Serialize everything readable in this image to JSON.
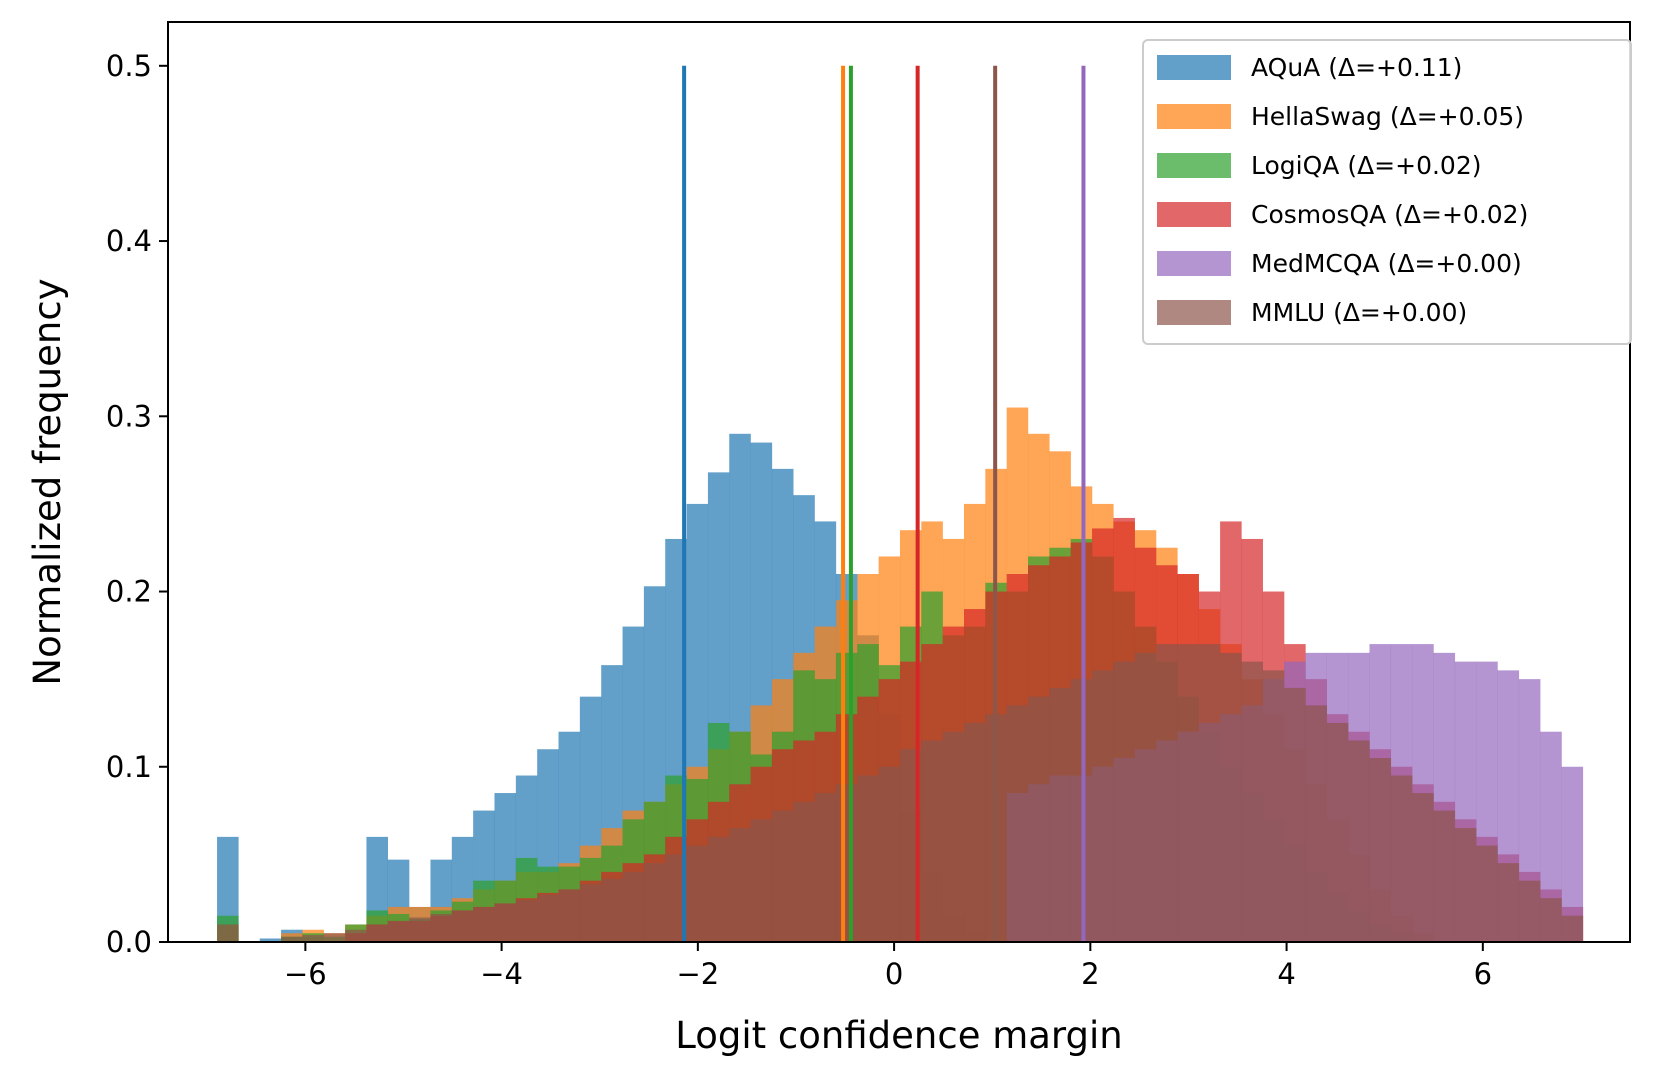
{
  "chart_data": {
    "type": "histogram",
    "title": "",
    "xlabel": "Logit confidence margin",
    "ylabel": "Normalized frequency",
    "xlim": [
      -7.4,
      7.5
    ],
    "ylim": [
      0,
      0.525
    ],
    "xticks": [
      -6,
      -4,
      -2,
      0,
      2,
      4,
      6
    ],
    "xtick_labels": [
      "−6",
      "−4",
      "−2",
      "0",
      "2",
      "4",
      "6"
    ],
    "yticks": [
      0.0,
      0.1,
      0.2,
      0.3,
      0.4,
      0.5
    ],
    "ytick_labels": [
      "0.0",
      "0.1",
      "0.2",
      "0.3",
      "0.4",
      "0.5"
    ],
    "grid": false,
    "legend_position": "top-right",
    "bin_start": -6.9,
    "bin_width": 0.2175,
    "bar_alpha": 0.7,
    "vline_top": 0.5,
    "series": [
      {
        "name": "AQuA",
        "label": "AQuA (Δ=+0.11)",
        "color": "#1f77b4",
        "vline_x": -2.14,
        "values": [
          0.06,
          0.0,
          0.002,
          0.007,
          0.003,
          0.0,
          0.005,
          0.06,
          0.047,
          0.02,
          0.047,
          0.06,
          0.075,
          0.085,
          0.095,
          0.11,
          0.12,
          0.14,
          0.158,
          0.18,
          0.203,
          0.23,
          0.25,
          0.268,
          0.29,
          0.285,
          0.27,
          0.255,
          0.24,
          0.21,
          0.175,
          0.13,
          0.075,
          0.04,
          0.015,
          0.005,
          0.001,
          0.0,
          0.0,
          0.0,
          0.0,
          0.0,
          0.0,
          0.0,
          0.0,
          0.0,
          0.0,
          0.0,
          0.0,
          0.0,
          0.0,
          0.0,
          0.0,
          0.0,
          0.0,
          0.0,
          0.0,
          0.0,
          0.0,
          0.0,
          0.0,
          0.0,
          0.0,
          0.0
        ]
      },
      {
        "name": "HellaSwag",
        "label": "HellaSwag (Δ=+0.05)",
        "color": "#ff7f0e",
        "vline_x": -0.52,
        "values": [
          0.01,
          0.0,
          0.0,
          0.005,
          0.007,
          0.005,
          0.01,
          0.015,
          0.02,
          0.02,
          0.02,
          0.025,
          0.03,
          0.035,
          0.04,
          0.04,
          0.045,
          0.055,
          0.065,
          0.075,
          0.08,
          0.09,
          0.1,
          0.11,
          0.12,
          0.135,
          0.15,
          0.165,
          0.18,
          0.195,
          0.21,
          0.22,
          0.235,
          0.24,
          0.23,
          0.25,
          0.27,
          0.305,
          0.29,
          0.28,
          0.26,
          0.25,
          0.24,
          0.235,
          0.225,
          0.21,
          0.19,
          0.17,
          0.15,
          0.13,
          0.11,
          0.09,
          0.07,
          0.05,
          0.03,
          0.015,
          0.005,
          0.0,
          0.0,
          0.0,
          0.0,
          0.0,
          0.0,
          0.0
        ]
      },
      {
        "name": "LogiQA",
        "label": "LogiQA (Δ=+0.02)",
        "color": "#2ca02c",
        "vline_x": -0.44,
        "values": [
          0.015,
          0.0,
          0.0,
          0.003,
          0.005,
          0.003,
          0.01,
          0.018,
          0.016,
          0.013,
          0.018,
          0.023,
          0.035,
          0.035,
          0.048,
          0.043,
          0.043,
          0.048,
          0.055,
          0.07,
          0.08,
          0.095,
          0.093,
          0.125,
          0.12,
          0.107,
          0.12,
          0.155,
          0.15,
          0.165,
          0.17,
          0.158,
          0.18,
          0.2,
          0.175,
          0.18,
          0.205,
          0.2,
          0.22,
          0.225,
          0.23,
          0.22,
          0.2,
          0.18,
          0.16,
          0.14,
          0.12,
          0.1,
          0.085,
          0.07,
          0.055,
          0.04,
          0.028,
          0.018,
          0.01,
          0.005,
          0.002,
          0.0,
          0.0,
          0.0,
          0.0,
          0.0,
          0.0,
          0.0
        ]
      },
      {
        "name": "CosmosQA",
        "label": "CosmosQA (Δ=+0.02)",
        "color": "#d62728",
        "vline_x": 0.24,
        "values": [
          0.0,
          0.0,
          0.0,
          0.0,
          0.0,
          0.0,
          0.005,
          0.01,
          0.012,
          0.012,
          0.015,
          0.018,
          0.02,
          0.022,
          0.025,
          0.028,
          0.03,
          0.035,
          0.04,
          0.045,
          0.05,
          0.06,
          0.07,
          0.08,
          0.09,
          0.1,
          0.11,
          0.115,
          0.12,
          0.13,
          0.14,
          0.15,
          0.16,
          0.17,
          0.18,
          0.19,
          0.2,
          0.21,
          0.215,
          0.22,
          0.228,
          0.236,
          0.242,
          0.225,
          0.215,
          0.21,
          0.2,
          0.24,
          0.23,
          0.2,
          0.17,
          0.15,
          0.13,
          0.12,
          0.11,
          0.1,
          0.09,
          0.08,
          0.07,
          0.06,
          0.05,
          0.04,
          0.03,
          0.02
        ]
      },
      {
        "name": "MedMCQA",
        "label": "MedMCQA (Δ=+0.00)",
        "color": "#9467bd",
        "vline_x": 1.93,
        "values": [
          0.0,
          0.0,
          0.0,
          0.0,
          0.0,
          0.0,
          0.0,
          0.0,
          0.0,
          0.0,
          0.0,
          0.0,
          0.0,
          0.0,
          0.0,
          0.0,
          0.0,
          0.0,
          0.0,
          0.0,
          0.0,
          0.0,
          0.0,
          0.0,
          0.0,
          0.0,
          0.0,
          0.0,
          0.0,
          0.0,
          0.0,
          0.0,
          0.0,
          0.0,
          0.0,
          0.0,
          0.0,
          0.085,
          0.09,
          0.095,
          0.095,
          0.1,
          0.105,
          0.11,
          0.115,
          0.12,
          0.125,
          0.13,
          0.135,
          0.15,
          0.16,
          0.165,
          0.165,
          0.165,
          0.17,
          0.17,
          0.17,
          0.165,
          0.16,
          0.16,
          0.155,
          0.15,
          0.12,
          0.1
        ]
      },
      {
        "name": "MMLU",
        "label": "MMLU (Δ=+0.00)",
        "color": "#8c564b",
        "vline_x": 1.03,
        "values": [
          0.01,
          0.0,
          0.0,
          0.003,
          0.004,
          0.005,
          0.007,
          0.01,
          0.012,
          0.014,
          0.016,
          0.018,
          0.02,
          0.022,
          0.024,
          0.027,
          0.03,
          0.033,
          0.036,
          0.04,
          0.045,
          0.05,
          0.055,
          0.06,
          0.065,
          0.07,
          0.075,
          0.08,
          0.085,
          0.09,
          0.095,
          0.1,
          0.11,
          0.115,
          0.12,
          0.125,
          0.13,
          0.135,
          0.14,
          0.145,
          0.15,
          0.155,
          0.16,
          0.165,
          0.17,
          0.17,
          0.17,
          0.165,
          0.16,
          0.155,
          0.145,
          0.135,
          0.125,
          0.115,
          0.105,
          0.095,
          0.085,
          0.075,
          0.065,
          0.055,
          0.045,
          0.035,
          0.025,
          0.015
        ]
      }
    ]
  }
}
